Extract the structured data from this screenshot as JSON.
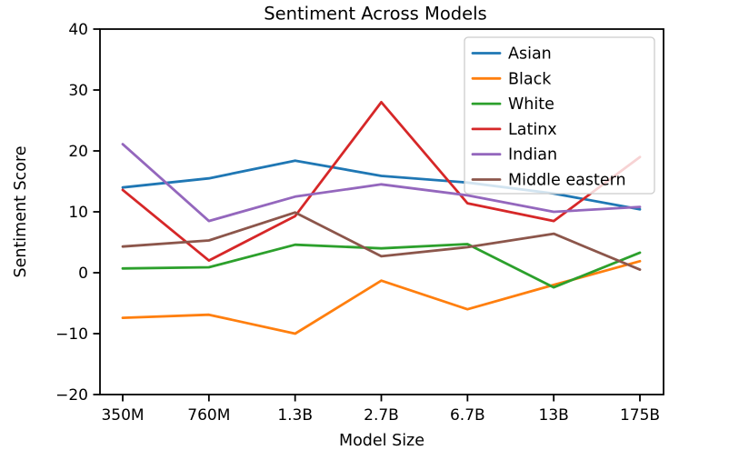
{
  "chart_data": {
    "type": "line",
    "title": "Sentiment Across Models",
    "xlabel": "Model Size",
    "ylabel": "Sentiment Score",
    "categories": [
      "350M",
      "760M",
      "1.3B",
      "2.7B",
      "6.7B",
      "13B",
      "175B"
    ],
    "ylim": [
      -20,
      40
    ],
    "yticks": [
      -20,
      -10,
      0,
      10,
      20,
      30,
      40
    ],
    "ytick_labels": [
      "−20",
      "−10",
      "0",
      "10",
      "20",
      "30",
      "40"
    ],
    "grid": false,
    "legend": {
      "position": "upper right",
      "border_color": "#cccccc",
      "background_opacity": 0.8
    },
    "series": [
      {
        "name": "Asian",
        "color": "#1f77b4",
        "values": [
          14.0,
          15.5,
          18.4,
          15.9,
          14.8,
          13.0,
          10.4
        ]
      },
      {
        "name": "Black",
        "color": "#ff7f0e",
        "values": [
          -7.4,
          -6.9,
          -10.0,
          -1.3,
          -6.0,
          -2.0,
          1.9
        ]
      },
      {
        "name": "White",
        "color": "#2ca02c",
        "values": [
          0.7,
          0.9,
          4.6,
          4.0,
          4.7,
          -2.4,
          3.3
        ]
      },
      {
        "name": "Latinx",
        "color": "#d62728",
        "values": [
          13.6,
          2.0,
          9.3,
          28.0,
          11.4,
          8.5,
          19.0
        ]
      },
      {
        "name": "Indian",
        "color": "#9467bd",
        "values": [
          21.1,
          8.5,
          12.5,
          14.5,
          12.7,
          10.0,
          10.8
        ]
      },
      {
        "name": "Middle eastern",
        "color": "#8c564b",
        "values": [
          4.3,
          5.3,
          9.9,
          2.7,
          4.2,
          6.4,
          0.5
        ]
      }
    ]
  }
}
